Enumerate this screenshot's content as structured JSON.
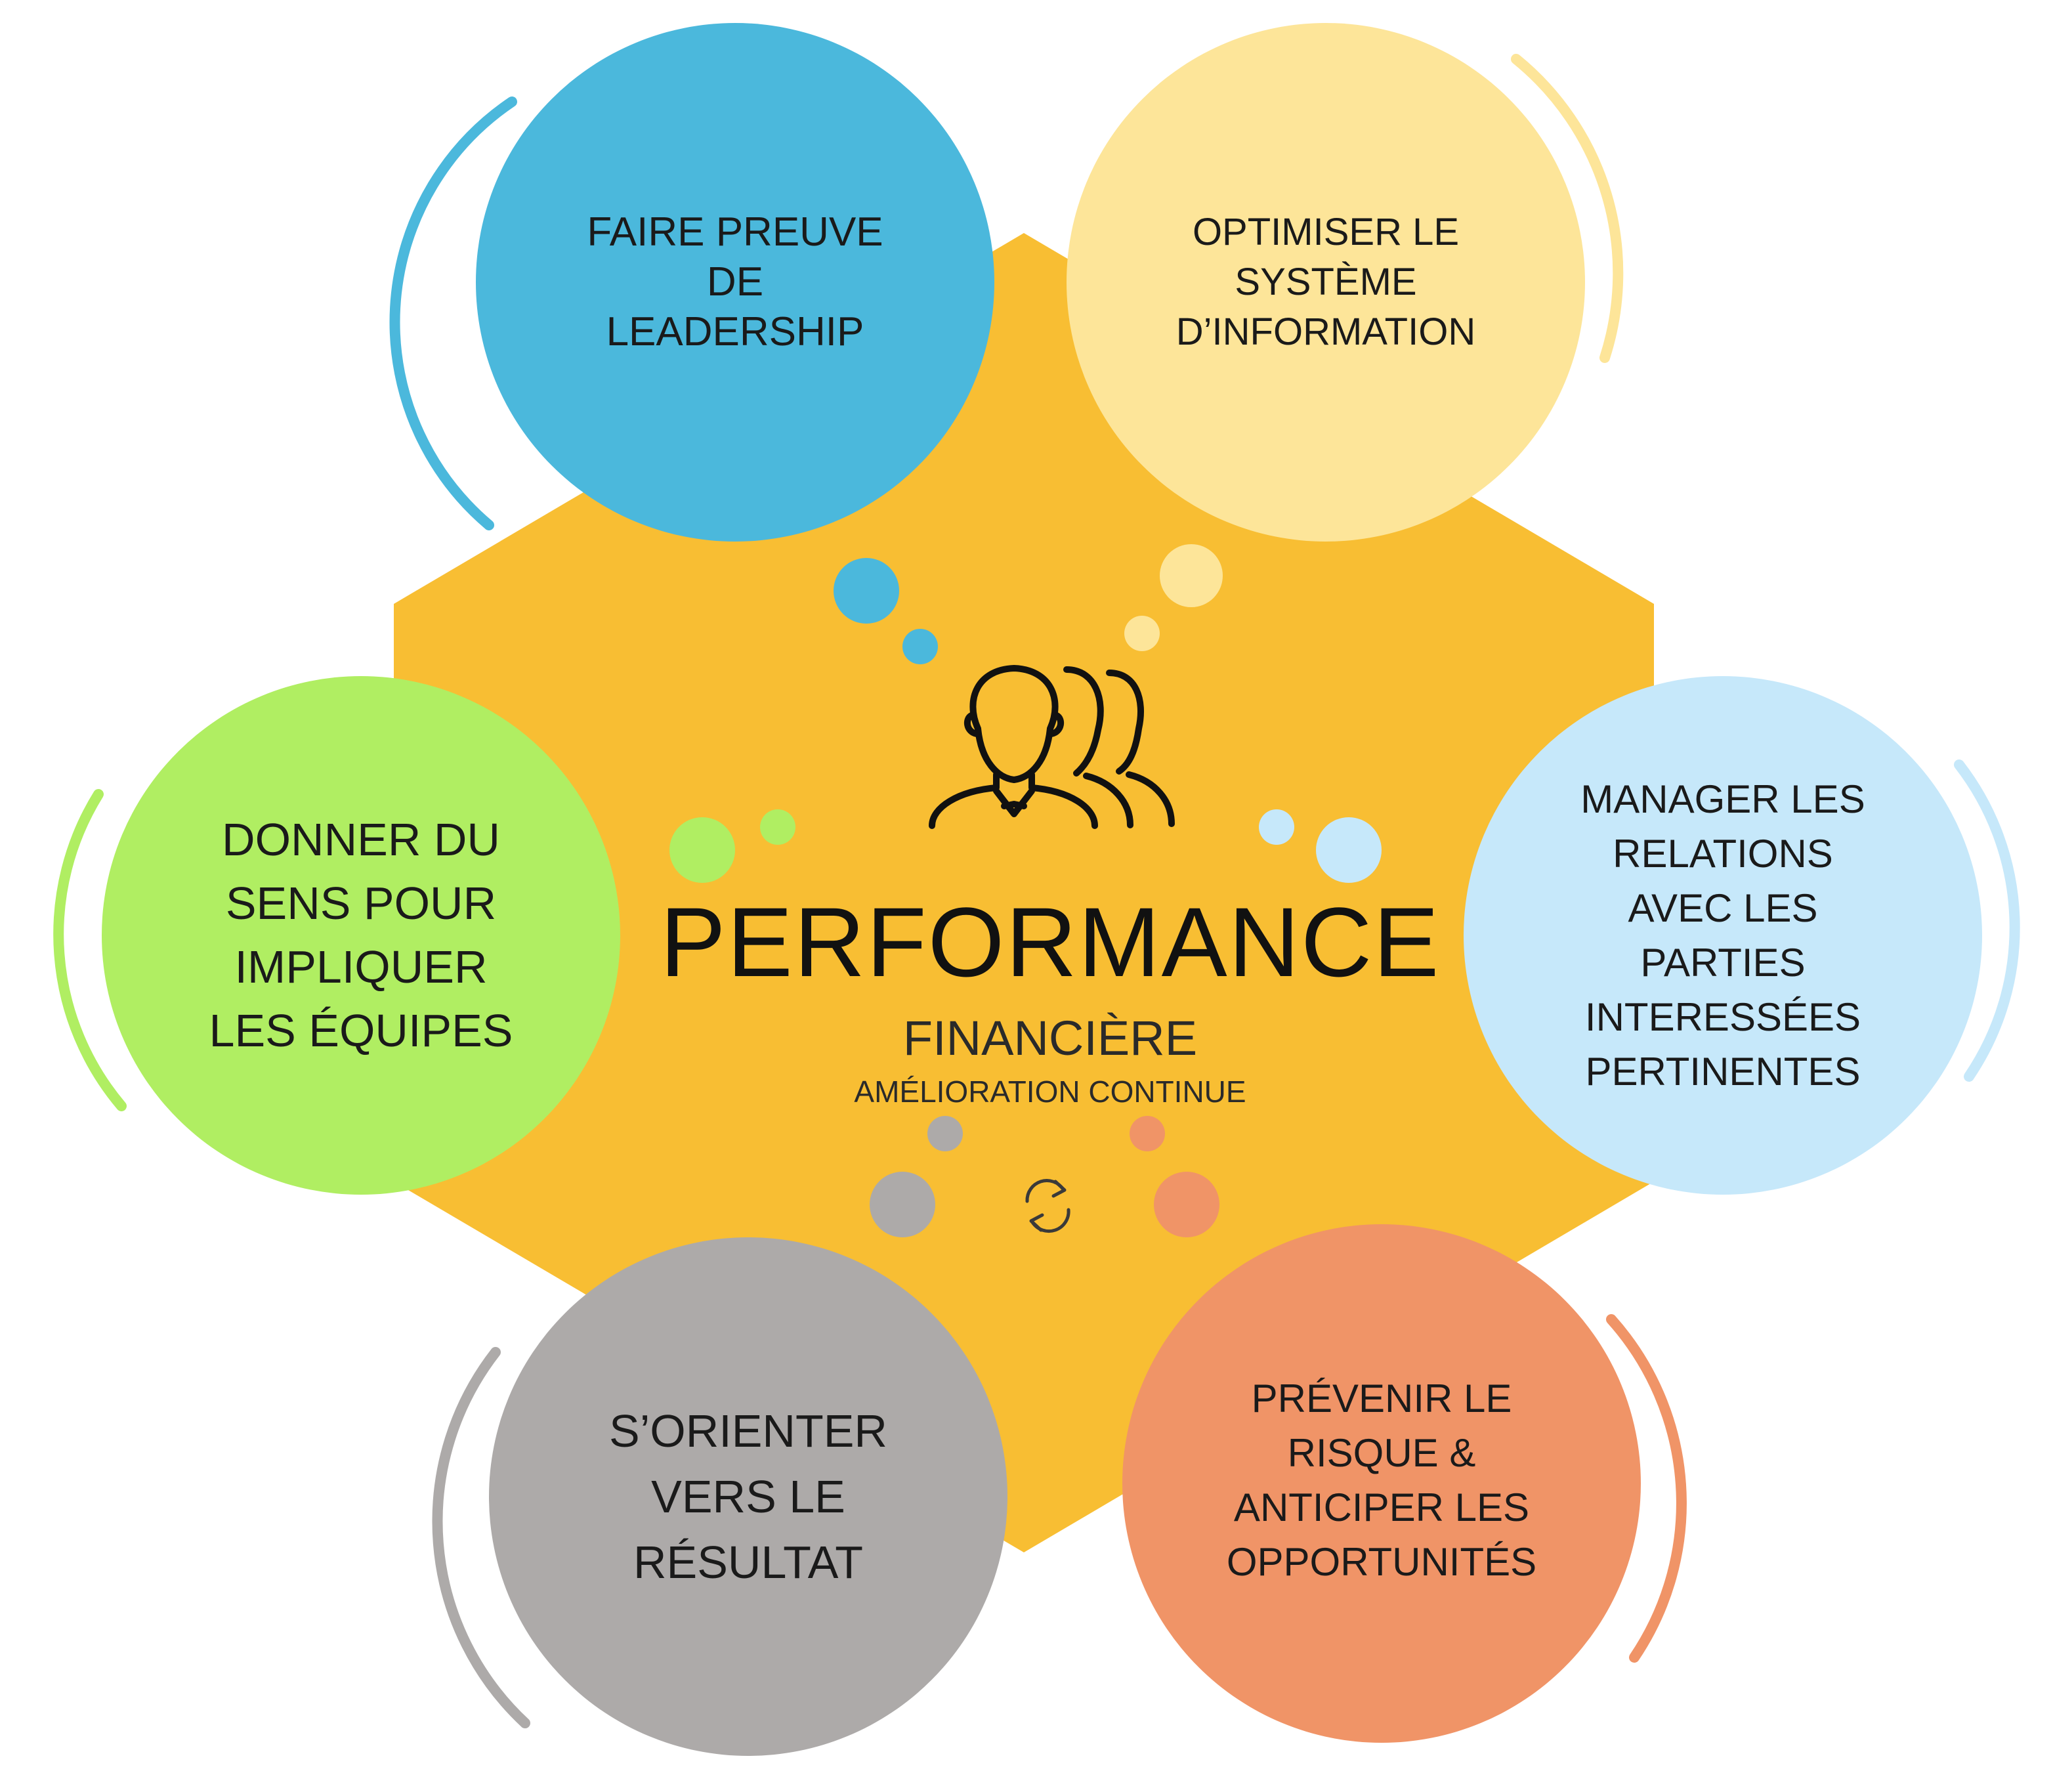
{
  "center": {
    "title": "PERFORMANCE",
    "subtitle": "FINANCIÈRE",
    "caption": "AMÉLIORATION CONTINUE",
    "icon": "team-people-icon",
    "bottom_icon": "refresh-cycle-icon"
  },
  "colors": {
    "center_hexagon": "#F8BE33",
    "leadership": "#4BB8DC",
    "information_system": "#FDE599",
    "stakeholders": "#C6E8FA",
    "risk": "#F09467",
    "result": "#ADAAA9",
    "meaning": "#B0EE62",
    "text": "#1a1a1a"
  },
  "nodes": [
    {
      "id": "leadership",
      "lines": [
        "FAIRE PREUVE",
        "DE",
        "LEADERSHIP"
      ]
    },
    {
      "id": "information-system",
      "lines": [
        "OPTIMISER LE",
        "SYSTÈME",
        "D’INFORMATION"
      ]
    },
    {
      "id": "stakeholders",
      "lines": [
        "MANAGER LES",
        "RELATIONS",
        "AVEC LES",
        "PARTIES",
        "INTERESSÉES",
        "PERTINENTES"
      ]
    },
    {
      "id": "risk",
      "lines": [
        "PRÉVENIR LE",
        "RISQUE &",
        "ANTICIPER LES",
        "OPPORTUNITÉS"
      ]
    },
    {
      "id": "result",
      "lines": [
        "S’ORIENTER",
        "VERS LE",
        "RÉSULTAT"
      ]
    },
    {
      "id": "meaning",
      "lines": [
        "DONNER DU",
        "SENS POUR",
        "IMPLIQUER",
        "LES ÉQUIPES"
      ]
    }
  ]
}
